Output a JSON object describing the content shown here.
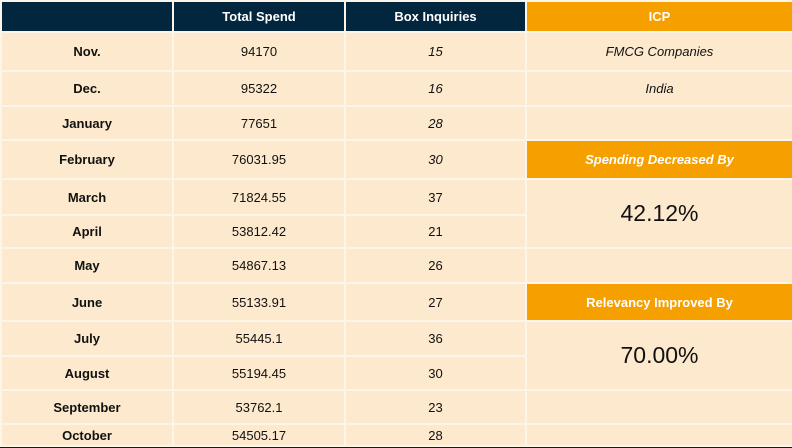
{
  "headers": {
    "month": "",
    "total_spend": "Total Spend",
    "box_inquiries": "Box Inquiries",
    "icp": "ICP"
  },
  "rows": [
    {
      "month": "Nov.",
      "spend": "94170",
      "inquiries": "15"
    },
    {
      "month": "Dec.",
      "spend": "95322",
      "inquiries": "16"
    },
    {
      "month": "January",
      "spend": "77651",
      "inquiries": "28"
    },
    {
      "month": "February",
      "spend": "76031.95",
      "inquiries": "30"
    },
    {
      "month": "March",
      "spend": "71824.55",
      "inquiries": "37"
    },
    {
      "month": "April",
      "spend": "53812.42",
      "inquiries": "21"
    },
    {
      "month": "May",
      "spend": "54867.13",
      "inquiries": "26"
    },
    {
      "month": "June",
      "spend": "55133.91",
      "inquiries": "27"
    },
    {
      "month": "July",
      "spend": "55445.1",
      "inquiries": "36"
    },
    {
      "month": "August",
      "spend": "55194.45",
      "inquiries": "30"
    },
    {
      "month": "September",
      "spend": "53762.1",
      "inquiries": "23"
    },
    {
      "month": "October",
      "spend": "54505.17",
      "inquiries": "28"
    }
  ],
  "icp": {
    "industry": "FMCG  Companies",
    "country": "India"
  },
  "spending": {
    "label": "Spending Decreased By",
    "value": "42.12%"
  },
  "relevancy": {
    "label": "Relevancy Improved By",
    "value": "70.00%"
  },
  "colors": {
    "header_navy": "#03263f",
    "accent_orange": "#f6a000",
    "cell_bg": "#fde9cd"
  }
}
